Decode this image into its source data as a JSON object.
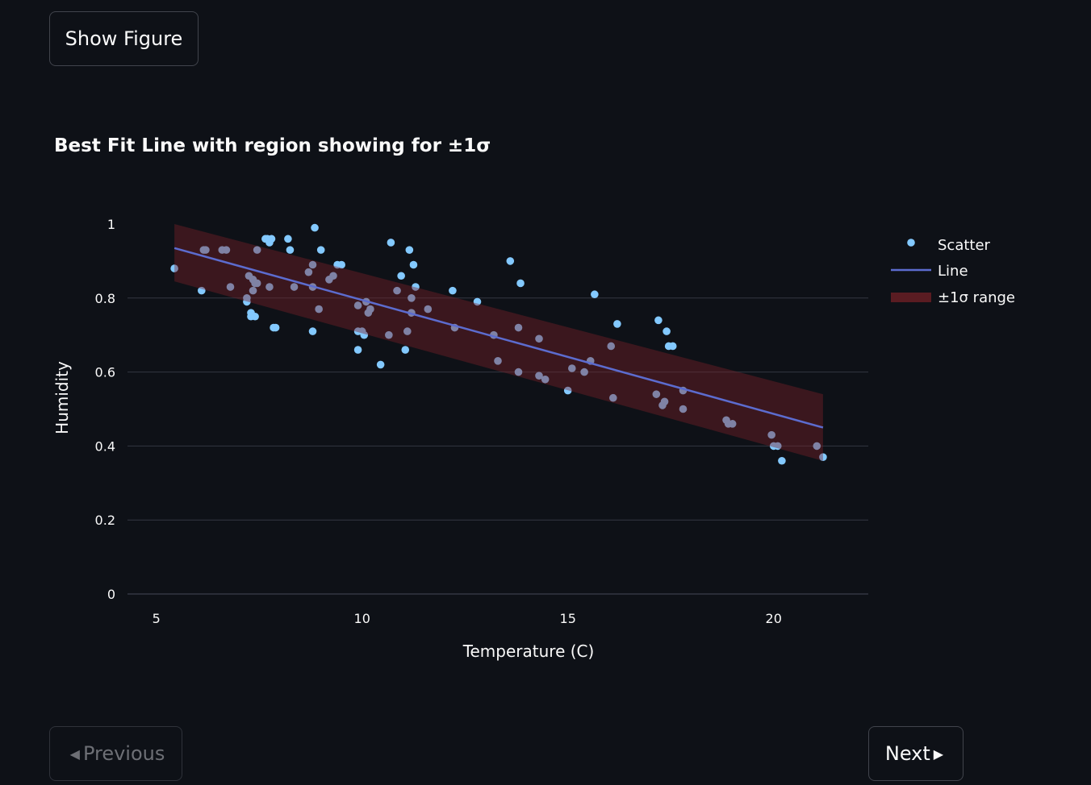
{
  "buttons": {
    "show_figure": "Show Figure",
    "previous": "Previous",
    "next": "Next"
  },
  "colors": {
    "background": "#0e1117",
    "scatter": "#83c9ff",
    "line": "#5c6ccf",
    "band": "#4a1a1f",
    "grid": "#333742"
  },
  "chart_data": {
    "type": "scatter",
    "title": "Best Fit Line with region showing for ±1σ",
    "xlabel": "Temperature  (C)",
    "ylabel": "Humidity",
    "xlim": [
      4.3,
      22.3
    ],
    "ylim": [
      0,
      1
    ],
    "xticks": [
      5,
      10,
      15,
      20
    ],
    "yticks": [
      0,
      0.2,
      0.4,
      0.6,
      0.8,
      1
    ],
    "ytick_labels": [
      "0",
      "0.2",
      "0.4",
      "0.6",
      "0.8",
      "1"
    ],
    "xtick_labels": [
      "5",
      "10",
      "15",
      "20"
    ],
    "grid": true,
    "legend_position": "top-right",
    "series": [
      {
        "name": "Scatter",
        "kind": "scatter",
        "x": [
          5.44,
          6.1,
          6.15,
          6.2,
          6.6,
          6.7,
          6.8,
          7.2,
          7.2,
          7.25,
          7.3,
          7.3,
          7.35,
          7.35,
          7.4,
          7.4,
          7.45,
          7.45,
          7.65,
          7.7,
          7.75,
          7.75,
          7.8,
          7.85,
          7.9,
          8.2,
          8.25,
          8.35,
          8.7,
          8.8,
          8.8,
          8.8,
          8.85,
          8.95,
          9.0,
          9.2,
          9.3,
          9.4,
          9.5,
          9.9,
          9.9,
          9.9,
          10.0,
          10.05,
          10.1,
          10.15,
          10.2,
          10.45,
          10.65,
          10.7,
          10.85,
          10.95,
          11.05,
          11.1,
          11.15,
          11.2,
          11.2,
          11.25,
          11.3,
          11.6,
          12.2,
          12.25,
          12.8,
          13.2,
          13.3,
          13.6,
          13.8,
          13.8,
          13.85,
          14.3,
          14.3,
          14.45,
          15.0,
          15.1,
          15.4,
          15.55,
          15.65,
          16.05,
          16.1,
          16.2,
          17.15,
          17.2,
          17.3,
          17.35,
          17.4,
          17.45,
          17.55,
          17.8,
          17.8,
          18.85,
          18.9,
          19.0,
          19.95,
          20.0,
          20.1,
          20.2,
          21.05,
          21.2
        ],
        "y": [
          0.88,
          0.82,
          0.93,
          0.93,
          0.93,
          0.93,
          0.83,
          0.8,
          0.79,
          0.86,
          0.76,
          0.75,
          0.85,
          0.82,
          0.75,
          0.84,
          0.84,
          0.93,
          0.96,
          0.96,
          0.95,
          0.83,
          0.96,
          0.72,
          0.72,
          0.96,
          0.93,
          0.83,
          0.87,
          0.83,
          0.89,
          0.71,
          0.99,
          0.77,
          0.93,
          0.85,
          0.86,
          0.89,
          0.89,
          0.78,
          0.71,
          0.66,
          0.71,
          0.7,
          0.79,
          0.76,
          0.77,
          0.62,
          0.7,
          0.95,
          0.82,
          0.86,
          0.66,
          0.71,
          0.93,
          0.8,
          0.76,
          0.89,
          0.83,
          0.77,
          0.82,
          0.72,
          0.79,
          0.7,
          0.63,
          0.9,
          0.72,
          0.6,
          0.84,
          0.69,
          0.59,
          0.58,
          0.55,
          0.61,
          0.6,
          0.63,
          0.81,
          0.67,
          0.53,
          0.73,
          0.54,
          0.74,
          0.51,
          0.52,
          0.71,
          0.67,
          0.67,
          0.55,
          0.5,
          0.47,
          0.46,
          0.46,
          0.43,
          0.4,
          0.4,
          0.36,
          0.4,
          0.37
        ]
      },
      {
        "name": "Line",
        "kind": "line",
        "x": [
          5.44,
          21.2
        ],
        "y": [
          0.935,
          0.45
        ]
      },
      {
        "name": "±1σ range",
        "kind": "band",
        "x": [
          5.44,
          21.2
        ],
        "upper": [
          1.0,
          0.54
        ],
        "lower": [
          0.845,
          0.36
        ]
      }
    ]
  }
}
